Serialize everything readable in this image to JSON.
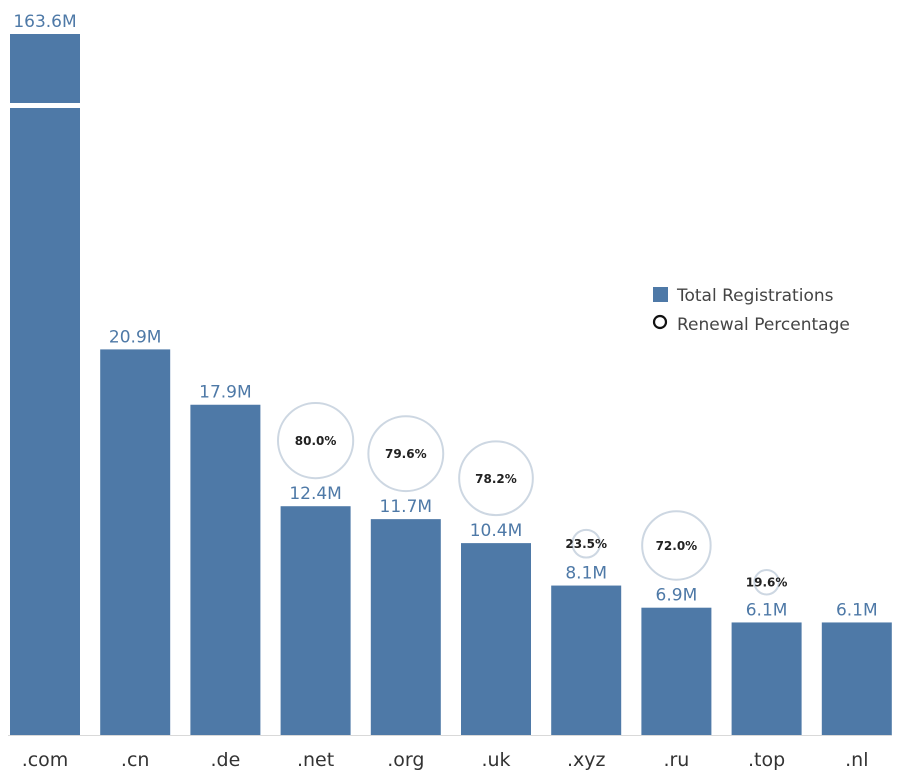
{
  "colors": {
    "bar": "#4e79a7",
    "circle_stroke": "#cdd7e2",
    "axis": "#d9d9d9"
  },
  "legend": {
    "items": [
      {
        "label": "Total Registrations",
        "marker": "square"
      },
      {
        "label": "Renewal Percentage",
        "marker": "circle"
      }
    ]
  },
  "chart_data": {
    "type": "bar",
    "categories": [
      ".com",
      ".cn",
      ".de",
      ".net",
      ".org",
      ".uk",
      ".xyz",
      ".ru",
      ".top",
      ".nl"
    ],
    "series": [
      {
        "name": "Total Registrations",
        "values": [
          163.6,
          20.9,
          17.9,
          12.4,
          11.7,
          10.4,
          8.1,
          6.9,
          6.1,
          6.1
        ],
        "labels": [
          "163.6M",
          "20.9M",
          "17.9M",
          "12.4M",
          "11.7M",
          "10.4M",
          "8.1M",
          "6.9M",
          "6.1M",
          "6.1M"
        ]
      },
      {
        "name": "Renewal Percentage",
        "values": [
          null,
          null,
          null,
          80.0,
          79.6,
          78.2,
          23.5,
          72.0,
          19.6,
          null
        ],
        "labels": [
          "",
          "",
          "",
          "80.0%",
          "79.6%",
          "78.2%",
          "23.5%",
          "72.0%",
          "19.6%",
          ""
        ]
      }
    ],
    "axis_break": {
      "below": 30,
      "above": 145,
      "note": "the .com bar's value axis is broken"
    },
    "legend_position": "right",
    "grid": false
  }
}
